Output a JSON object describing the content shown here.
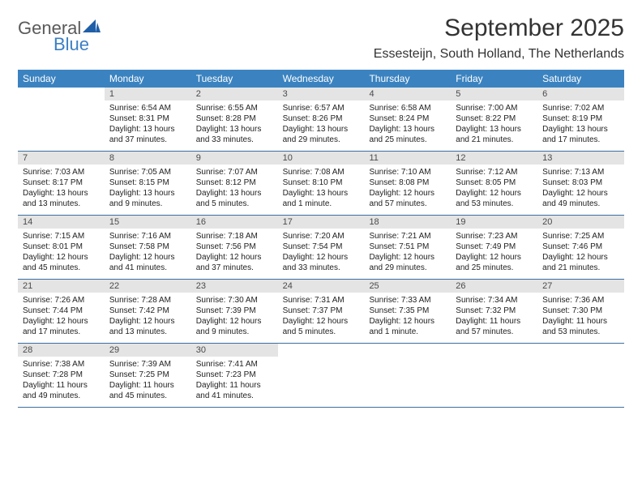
{
  "colors": {
    "header_bar": "#3b83c0",
    "header_text": "#ffffff",
    "daynum_bg": "#e4e4e4",
    "daynum_text": "#4a4a4a",
    "row_border": "#3b6fa0",
    "title_text": "#333333",
    "body_text": "#222222",
    "logo_gray": "#5a5a5a",
    "logo_blue": "#3b7fc4",
    "page_bg": "#ffffff"
  },
  "font": {
    "family": "Arial",
    "title_size_pt": 30,
    "location_size_pt": 16,
    "dow_size_pt": 12,
    "cell_size_pt": 10
  },
  "logo": {
    "line1": "General",
    "line2": "Blue"
  },
  "title": "September 2025",
  "location": "Essesteijn, South Holland, The Netherlands",
  "dow": [
    "Sunday",
    "Monday",
    "Tuesday",
    "Wednesday",
    "Thursday",
    "Friday",
    "Saturday"
  ],
  "weeks": [
    [
      {
        "n": "",
        "sr": "",
        "ss": "",
        "dl": ""
      },
      {
        "n": "1",
        "sr": "Sunrise: 6:54 AM",
        "ss": "Sunset: 8:31 PM",
        "dl": "Daylight: 13 hours and 37 minutes."
      },
      {
        "n": "2",
        "sr": "Sunrise: 6:55 AM",
        "ss": "Sunset: 8:28 PM",
        "dl": "Daylight: 13 hours and 33 minutes."
      },
      {
        "n": "3",
        "sr": "Sunrise: 6:57 AM",
        "ss": "Sunset: 8:26 PM",
        "dl": "Daylight: 13 hours and 29 minutes."
      },
      {
        "n": "4",
        "sr": "Sunrise: 6:58 AM",
        "ss": "Sunset: 8:24 PM",
        "dl": "Daylight: 13 hours and 25 minutes."
      },
      {
        "n": "5",
        "sr": "Sunrise: 7:00 AM",
        "ss": "Sunset: 8:22 PM",
        "dl": "Daylight: 13 hours and 21 minutes."
      },
      {
        "n": "6",
        "sr": "Sunrise: 7:02 AM",
        "ss": "Sunset: 8:19 PM",
        "dl": "Daylight: 13 hours and 17 minutes."
      }
    ],
    [
      {
        "n": "7",
        "sr": "Sunrise: 7:03 AM",
        "ss": "Sunset: 8:17 PM",
        "dl": "Daylight: 13 hours and 13 minutes."
      },
      {
        "n": "8",
        "sr": "Sunrise: 7:05 AM",
        "ss": "Sunset: 8:15 PM",
        "dl": "Daylight: 13 hours and 9 minutes."
      },
      {
        "n": "9",
        "sr": "Sunrise: 7:07 AM",
        "ss": "Sunset: 8:12 PM",
        "dl": "Daylight: 13 hours and 5 minutes."
      },
      {
        "n": "10",
        "sr": "Sunrise: 7:08 AM",
        "ss": "Sunset: 8:10 PM",
        "dl": "Daylight: 13 hours and 1 minute."
      },
      {
        "n": "11",
        "sr": "Sunrise: 7:10 AM",
        "ss": "Sunset: 8:08 PM",
        "dl": "Daylight: 12 hours and 57 minutes."
      },
      {
        "n": "12",
        "sr": "Sunrise: 7:12 AM",
        "ss": "Sunset: 8:05 PM",
        "dl": "Daylight: 12 hours and 53 minutes."
      },
      {
        "n": "13",
        "sr": "Sunrise: 7:13 AM",
        "ss": "Sunset: 8:03 PM",
        "dl": "Daylight: 12 hours and 49 minutes."
      }
    ],
    [
      {
        "n": "14",
        "sr": "Sunrise: 7:15 AM",
        "ss": "Sunset: 8:01 PM",
        "dl": "Daylight: 12 hours and 45 minutes."
      },
      {
        "n": "15",
        "sr": "Sunrise: 7:16 AM",
        "ss": "Sunset: 7:58 PM",
        "dl": "Daylight: 12 hours and 41 minutes."
      },
      {
        "n": "16",
        "sr": "Sunrise: 7:18 AM",
        "ss": "Sunset: 7:56 PM",
        "dl": "Daylight: 12 hours and 37 minutes."
      },
      {
        "n": "17",
        "sr": "Sunrise: 7:20 AM",
        "ss": "Sunset: 7:54 PM",
        "dl": "Daylight: 12 hours and 33 minutes."
      },
      {
        "n": "18",
        "sr": "Sunrise: 7:21 AM",
        "ss": "Sunset: 7:51 PM",
        "dl": "Daylight: 12 hours and 29 minutes."
      },
      {
        "n": "19",
        "sr": "Sunrise: 7:23 AM",
        "ss": "Sunset: 7:49 PM",
        "dl": "Daylight: 12 hours and 25 minutes."
      },
      {
        "n": "20",
        "sr": "Sunrise: 7:25 AM",
        "ss": "Sunset: 7:46 PM",
        "dl": "Daylight: 12 hours and 21 minutes."
      }
    ],
    [
      {
        "n": "21",
        "sr": "Sunrise: 7:26 AM",
        "ss": "Sunset: 7:44 PM",
        "dl": "Daylight: 12 hours and 17 minutes."
      },
      {
        "n": "22",
        "sr": "Sunrise: 7:28 AM",
        "ss": "Sunset: 7:42 PM",
        "dl": "Daylight: 12 hours and 13 minutes."
      },
      {
        "n": "23",
        "sr": "Sunrise: 7:30 AM",
        "ss": "Sunset: 7:39 PM",
        "dl": "Daylight: 12 hours and 9 minutes."
      },
      {
        "n": "24",
        "sr": "Sunrise: 7:31 AM",
        "ss": "Sunset: 7:37 PM",
        "dl": "Daylight: 12 hours and 5 minutes."
      },
      {
        "n": "25",
        "sr": "Sunrise: 7:33 AM",
        "ss": "Sunset: 7:35 PM",
        "dl": "Daylight: 12 hours and 1 minute."
      },
      {
        "n": "26",
        "sr": "Sunrise: 7:34 AM",
        "ss": "Sunset: 7:32 PM",
        "dl": "Daylight: 11 hours and 57 minutes."
      },
      {
        "n": "27",
        "sr": "Sunrise: 7:36 AM",
        "ss": "Sunset: 7:30 PM",
        "dl": "Daylight: 11 hours and 53 minutes."
      }
    ],
    [
      {
        "n": "28",
        "sr": "Sunrise: 7:38 AM",
        "ss": "Sunset: 7:28 PM",
        "dl": "Daylight: 11 hours and 49 minutes."
      },
      {
        "n": "29",
        "sr": "Sunrise: 7:39 AM",
        "ss": "Sunset: 7:25 PM",
        "dl": "Daylight: 11 hours and 45 minutes."
      },
      {
        "n": "30",
        "sr": "Sunrise: 7:41 AM",
        "ss": "Sunset: 7:23 PM",
        "dl": "Daylight: 11 hours and 41 minutes."
      },
      {
        "n": "",
        "sr": "",
        "ss": "",
        "dl": ""
      },
      {
        "n": "",
        "sr": "",
        "ss": "",
        "dl": ""
      },
      {
        "n": "",
        "sr": "",
        "ss": "",
        "dl": ""
      },
      {
        "n": "",
        "sr": "",
        "ss": "",
        "dl": ""
      }
    ]
  ]
}
